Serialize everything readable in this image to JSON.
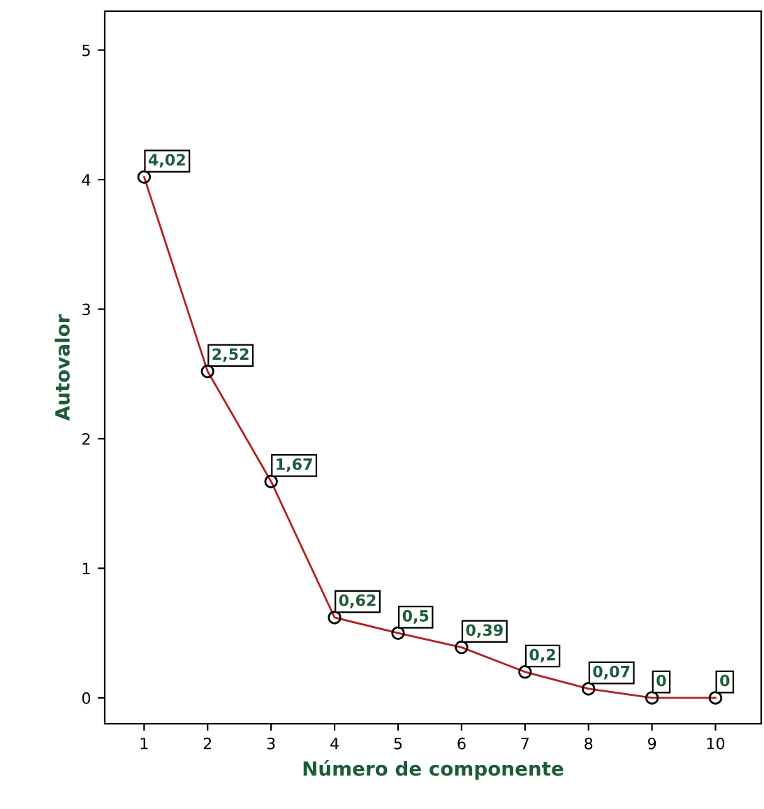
{
  "chart_data": {
    "type": "line",
    "xlabel": "Número de componente",
    "ylabel": "Autovalor",
    "categories": [
      "1",
      "2",
      "3",
      "4",
      "5",
      "6",
      "7",
      "8",
      "9",
      "10"
    ],
    "series": [
      {
        "color": "#b22222",
        "values": [
          4.02,
          2.52,
          1.67,
          0.62,
          0.5,
          0.39,
          0.2,
          0.07,
          0,
          0
        ],
        "value_labels": [
          "4,02",
          "2,52",
          "1,67",
          "0,62",
          "0,5",
          "0,39",
          "0,2",
          "0,07",
          "0",
          "0"
        ]
      }
    ],
    "ylim": [
      -0.2,
      5.3
    ],
    "yticks": [
      0,
      1,
      2,
      3,
      4,
      5
    ],
    "marker": "circle",
    "line_style": "solid",
    "grid": false,
    "legend": false
  }
}
